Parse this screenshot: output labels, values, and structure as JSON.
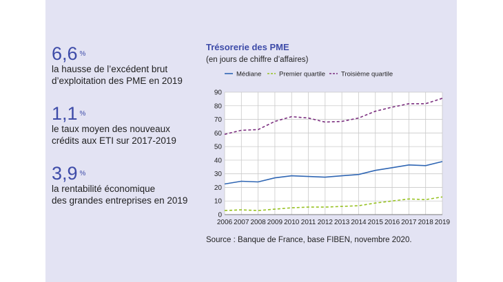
{
  "stats": [
    {
      "value": "6,6",
      "unit": "%",
      "line1": "la hausse de l’excédent brut",
      "line2": "d’exploitation des PME en 2019"
    },
    {
      "value": "1,1",
      "unit": "%",
      "line1": "le taux moyen des nouveaux",
      "line2": "crédits aux ETI sur 2017-2019"
    },
    {
      "value": "3,9",
      "unit": "%",
      "line1": "la rentabilité économique",
      "line2": "des grandes entreprises en 2019"
    }
  ],
  "chart_data": {
    "type": "line",
    "title": "Trésorerie des PME",
    "subtitle": "(en jours de chiffre d’affaires)",
    "source": "Source : Banque de France, base FIBEN, novembre 2020.",
    "x": [
      "2006",
      "2007",
      "2008",
      "2009",
      "2010",
      "2011",
      "2012",
      "2013",
      "2014",
      "2015",
      "2016",
      "2017",
      "2018",
      "2019"
    ],
    "ylim": [
      0,
      90
    ],
    "yticks": [
      0,
      10,
      20,
      30,
      40,
      50,
      60,
      70,
      80,
      90
    ],
    "grid": true,
    "legend_position": "top",
    "series": [
      {
        "name": "Médiane",
        "style": "solid",
        "color": "#2e65b3",
        "values": [
          22.5,
          24.5,
          24,
          27,
          28.5,
          28,
          27.5,
          28.5,
          29.5,
          32.5,
          34.5,
          36.5,
          36,
          39
        ]
      },
      {
        "name": "Premier quartile",
        "style": "dashed",
        "color": "#96c11f",
        "values": [
          3,
          3.5,
          3,
          4,
          5,
          5.5,
          5.5,
          6,
          6.5,
          8.5,
          10,
          11.5,
          11,
          13
        ]
      },
      {
        "name": "Troisième quartile",
        "style": "dashed",
        "color": "#7a2d7e",
        "values": [
          59,
          62,
          62.5,
          68.5,
          72,
          71,
          68,
          68.5,
          71,
          76,
          79,
          81.5,
          81.5,
          85.5
        ]
      }
    ]
  }
}
